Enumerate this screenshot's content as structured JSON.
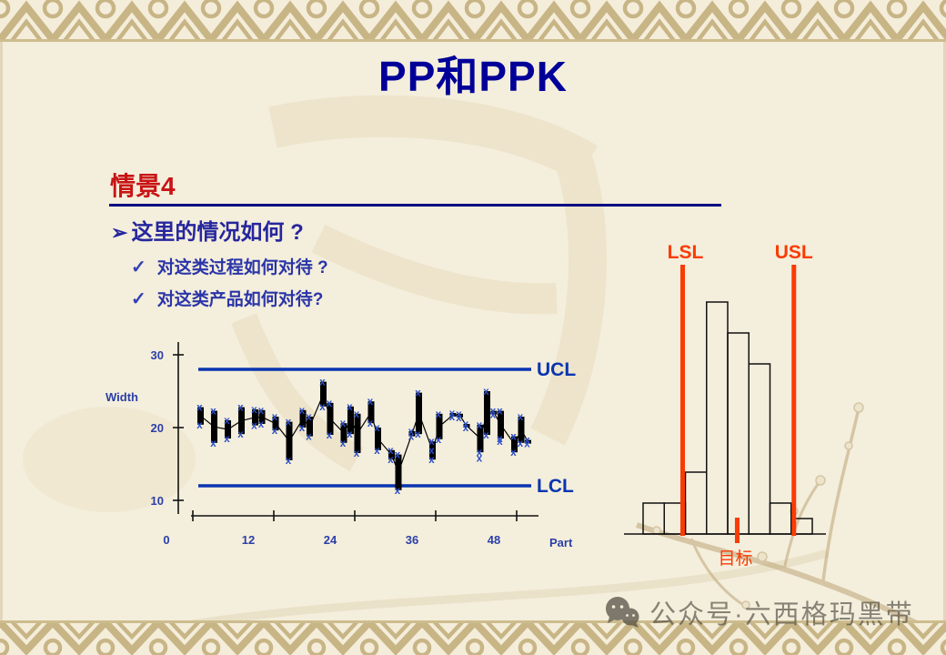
{
  "slide_title": "PP和PPK",
  "section": {
    "heading": "情景4"
  },
  "bullets": {
    "main_marker": "➢",
    "main": "这里的情况如何 ?",
    "sub": [
      {
        "marker": "✓",
        "text": "对这类过程如何对待 ?"
      },
      {
        "marker": "✓",
        "text": "对这类产品如何对待?"
      }
    ]
  },
  "watermark": {
    "label": "公众号·六西格玛黑带"
  },
  "colors": {
    "title_navy": "#000099",
    "heading_red": "#c81414",
    "bullet_blue": "#26269e",
    "chart_text_blue": "#2b3fa8",
    "limit_line_blue": "#0a35b0",
    "marker_blue": "#2b4fc8",
    "series_black": "#000000",
    "spec_orange": "#fb3b04",
    "background_cream": "#f4eedc",
    "border_tan": "#c8b586"
  },
  "chart_data": [
    {
      "type": "line",
      "subtype": "multi-vari-control-chart",
      "title": "",
      "ylabel": "Width",
      "xlabel": "Part",
      "yticks": [
        30,
        20,
        10
      ],
      "xticks": [
        0,
        12,
        24,
        36,
        48
      ],
      "ylim": [
        9,
        31
      ],
      "xlim": [
        0,
        56
      ],
      "grid": false,
      "marker": "x",
      "ucl": {
        "label": "UCL",
        "value": 28
      },
      "lcl": {
        "label": "LCL",
        "value": 12
      },
      "groups": [
        {
          "part": 5,
          "hi": 22.8,
          "lo": 20.4
        },
        {
          "part": 7,
          "hi": 22.3,
          "lo": 17.9
        },
        {
          "part": 9,
          "hi": 21.0,
          "lo": 18.5
        },
        {
          "part": 11,
          "hi": 22.8,
          "lo": 19.1
        },
        {
          "part": 13,
          "hi": 22.5,
          "lo": 20.3
        },
        {
          "part": 14,
          "hi": 22.4,
          "lo": 20.5
        },
        {
          "part": 16,
          "hi": 21.5,
          "lo": 19.6
        },
        {
          "part": 18,
          "hi": 20.8,
          "lo": 15.5
        },
        {
          "part": 20,
          "hi": 22.4,
          "lo": 20.0
        },
        {
          "part": 21,
          "hi": 21.5,
          "lo": 18.8
        },
        {
          "part": 23,
          "hi": 26.3,
          "lo": 22.9
        },
        {
          "part": 24,
          "hi": 23.4,
          "lo": 19.0
        },
        {
          "part": 26,
          "hi": 20.6,
          "lo": 17.9
        },
        {
          "part": 27,
          "hi": 22.9,
          "lo": 19.1
        },
        {
          "part": 28,
          "hi": 21.9,
          "lo": 16.5
        },
        {
          "part": 30,
          "hi": 23.6,
          "lo": 20.6
        },
        {
          "part": 31,
          "hi": 20.0,
          "lo": 16.9
        },
        {
          "part": 33,
          "hi": 16.9,
          "lo": 15.6
        },
        {
          "part": 34,
          "hi": 16.3,
          "lo": 11.4
        },
        {
          "part": 36,
          "hi": 19.5,
          "lo": 18.8
        },
        {
          "part": 37,
          "hi": 24.8,
          "lo": 19.1
        },
        {
          "part": 39,
          "hi": 18.1,
          "lo": 15.6,
          "extra": [
            16.9
          ]
        },
        {
          "part": 40,
          "hi": 21.9,
          "lo": 18.4
        },
        {
          "part": 42,
          "hi": 22.0,
          "lo": 21.5
        },
        {
          "part": 43,
          "hi": 21.9,
          "lo": 21.4
        },
        {
          "part": 44,
          "hi": 20.5,
          "lo": 20.0
        },
        {
          "part": 46,
          "hi": 20.4,
          "lo": 16.6,
          "extra": [
            15.8
          ]
        },
        {
          "part": 47,
          "hi": 25.0,
          "lo": 19.0
        },
        {
          "part": 48,
          "hi": 22.3,
          "lo": 21.8
        },
        {
          "part": 49,
          "hi": 22.3,
          "lo": 18.5,
          "extra": [
            18.1
          ]
        },
        {
          "part": 51,
          "hi": 18.8,
          "lo": 16.6
        },
        {
          "part": 52,
          "hi": 21.5,
          "lo": 17.9
        },
        {
          "part": 53,
          "hi": 18.3,
          "lo": 17.8
        }
      ]
    },
    {
      "type": "bar",
      "subtype": "capability-histogram",
      "counts": [
        2,
        2,
        4,
        15,
        13,
        11,
        2,
        1
      ],
      "lsl_label": "LSL",
      "usl_label": "USL",
      "target_label": "目标",
      "lsl_at_bin_edge": 2,
      "usl_at_bin_edge": 7,
      "target_at_bin": 4.45,
      "grid": false
    }
  ]
}
